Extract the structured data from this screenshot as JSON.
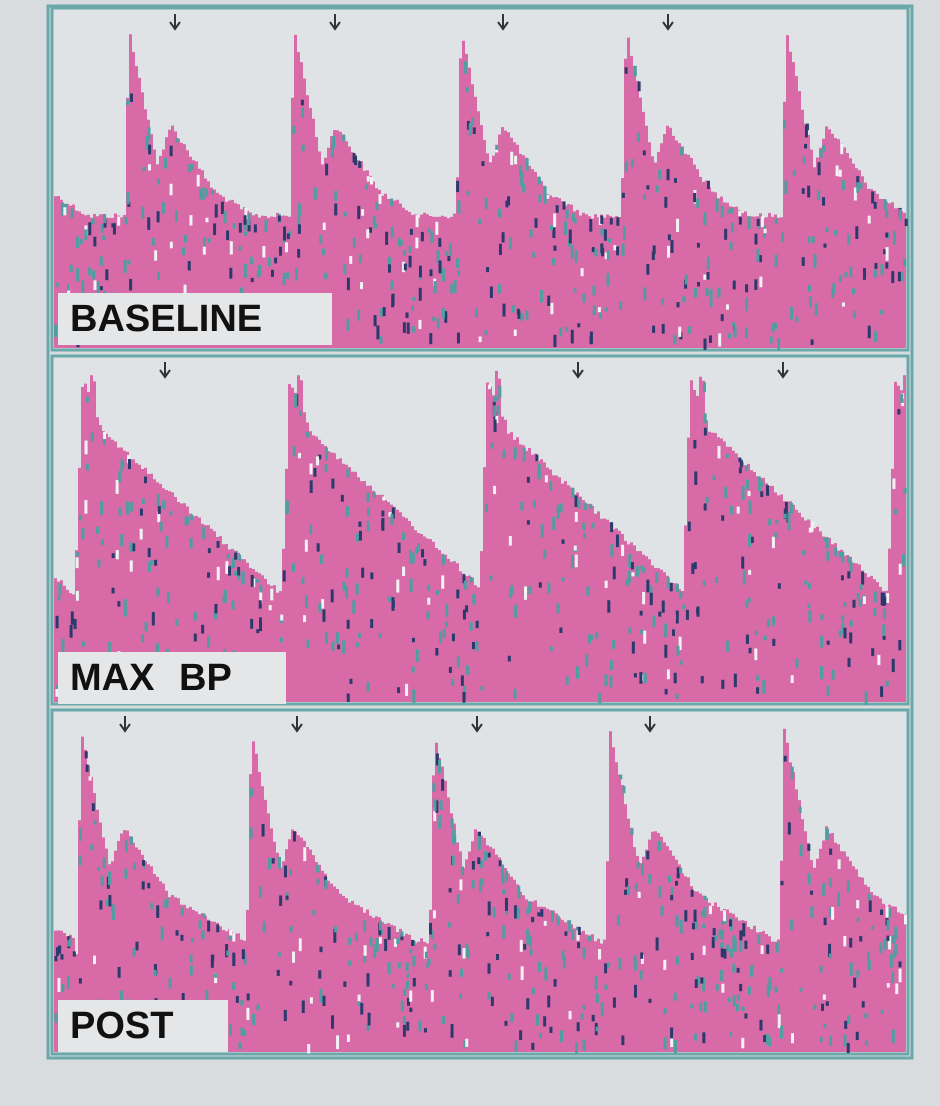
{
  "panels": [
    {
      "label": "BASELINE"
    },
    {
      "label": "MAX BP"
    },
    {
      "label": "POST"
    }
  ]
}
